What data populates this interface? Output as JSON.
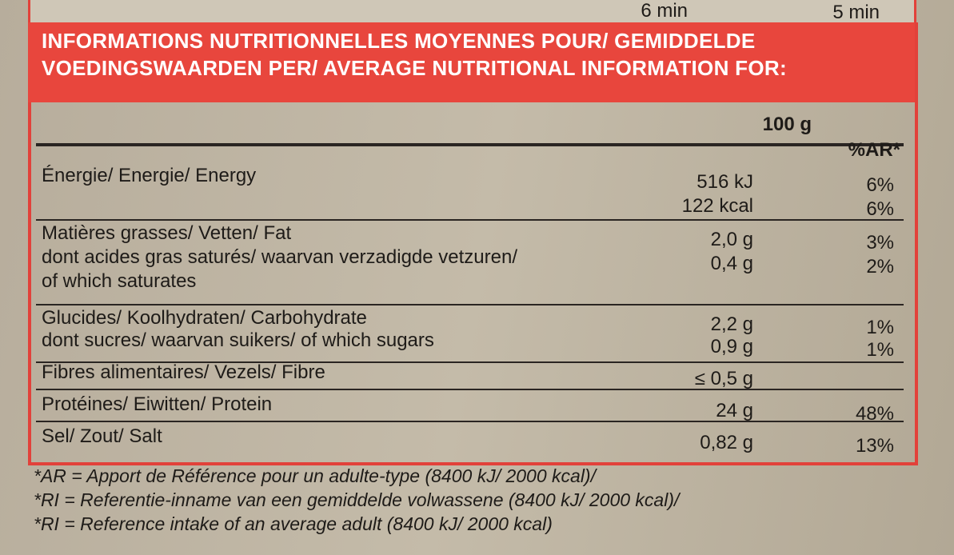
{
  "top": {
    "left": "6 min",
    "right": "5 min"
  },
  "header": {
    "lines": [
      "INFORMATIONS NUTRITIONNELLES MOYENNES POUR/ GEMIDDELDE",
      "VOEDINGSWAARDEN PER/ AVERAGE NUTRITIONAL INFORMATION FOR:"
    ]
  },
  "table": {
    "columns": [
      "100 g",
      "%AR*"
    ],
    "sections": [
      [
        {
          "label": [
            "Énergie/ Energie/ Energy"
          ],
          "amount": [
            "516 kJ",
            "122 kcal"
          ],
          "ar": [
            "6%",
            "6%"
          ]
        }
      ],
      [
        {
          "label": [
            "Matières grasses/ Vetten/ Fat"
          ],
          "amount": [
            "2,0 g"
          ],
          "ar": [
            "3%"
          ]
        },
        {
          "label": [
            "dont acides gras saturés/ waarvan verzadigde vetzuren/",
            "of which saturates"
          ],
          "amount": [
            "0,4 g"
          ],
          "ar": [
            "2%"
          ]
        }
      ],
      [
        {
          "label": [
            "Glucides/ Koolhydraten/ Carbohydrate"
          ],
          "amount": [
            "2,2 g"
          ],
          "ar": [
            "1%"
          ]
        },
        {
          "label": [
            "dont sucres/ waarvan suikers/ of which sugars"
          ],
          "amount": [
            "0,9 g"
          ],
          "ar": [
            "1%"
          ]
        }
      ],
      [
        {
          "label": [
            "Fibres alimentaires/ Vezels/ Fibre"
          ],
          "amount": [
            "≤ 0,5 g"
          ]
        }
      ],
      [
        {
          "label": [
            "Protéines/ Eiwitten/ Protein"
          ],
          "amount": [
            "24 g"
          ],
          "ar": [
            "48%"
          ]
        }
      ],
      [
        {
          "label": [
            "Sel/ Zout/ Salt"
          ],
          "amount": [
            "0,82 g"
          ],
          "ar": [
            "13%"
          ]
        }
      ]
    ]
  },
  "footnotes": [
    "*AR = Apport de Référence pour un adulte-type (8400 kJ/ 2000 kcal)/",
    "*RI = Referentie-inname van een gemiddelde volwassene (8400 kJ/ 2000 kcal)/",
    "*RI = Reference intake of an average adult (8400 kJ/ 2000 kcal)"
  ]
}
